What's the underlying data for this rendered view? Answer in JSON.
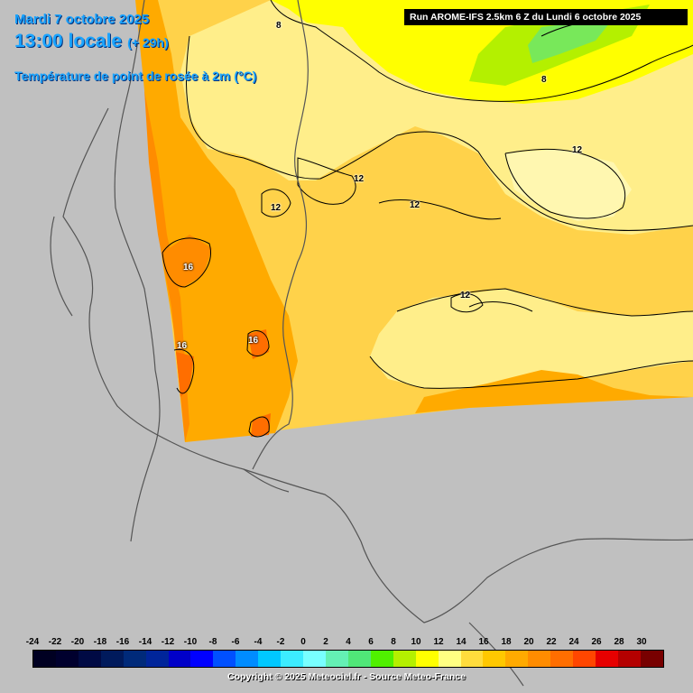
{
  "header": {
    "date": "Mardi 7 octobre 2025",
    "time": "13:00 locale",
    "lead": "(+ 29h)",
    "parameter": "Température de point de rosée à 2m (°C)",
    "run": "Run AROME-IFS 2.5km 6 Z du Lundi 6 octobre 2025"
  },
  "contour_labels": [
    {
      "text": "8"
    },
    {
      "text": "8"
    },
    {
      "text": "12"
    },
    {
      "text": "12"
    },
    {
      "text": "12"
    },
    {
      "text": "12"
    },
    {
      "text": "12"
    },
    {
      "text": "16"
    },
    {
      "text": "16"
    },
    {
      "text": "16"
    }
  ],
  "legend": {
    "labels": [
      "-24",
      "-22",
      "-20",
      "-18",
      "-16",
      "-14",
      "-12",
      "-10",
      "-8",
      "-6",
      "-4",
      "-2",
      "0",
      "2",
      "4",
      "6",
      "8",
      "10",
      "12",
      "14",
      "16",
      "18",
      "20",
      "22",
      "24",
      "26",
      "28",
      "30"
    ],
    "colors": [
      "#000022",
      "#00002e",
      "#000a44",
      "#001a5c",
      "#002a7a",
      "#00259a",
      "#0000c8",
      "#0000ff",
      "#0050ff",
      "#008cff",
      "#00c8ff",
      "#3cecff",
      "#78ffff",
      "#64f0b4",
      "#50e678",
      "#50f000",
      "#b4f000",
      "#ffff00",
      "#ffff82",
      "#ffdc3c",
      "#ffc800",
      "#ffaa00",
      "#ff8c00",
      "#ff6e00",
      "#ff4600",
      "#e60000",
      "#b40000",
      "#780000"
    ]
  },
  "copyright": "Copyright © 2025 Meteociel.fr - Source Meteo-France"
}
